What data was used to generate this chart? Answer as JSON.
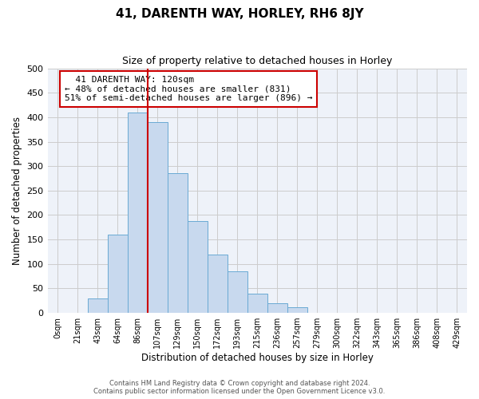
{
  "title": "41, DARENTH WAY, HORLEY, RH6 8JY",
  "subtitle": "Size of property relative to detached houses in Horley",
  "xlabel": "Distribution of detached houses by size in Horley",
  "ylabel": "Number of detached properties",
  "bar_labels": [
    "0sqm",
    "21sqm",
    "43sqm",
    "64sqm",
    "86sqm",
    "107sqm",
    "129sqm",
    "150sqm",
    "172sqm",
    "193sqm",
    "215sqm",
    "236sqm",
    "257sqm",
    "279sqm",
    "300sqm",
    "322sqm",
    "343sqm",
    "365sqm",
    "386sqm",
    "408sqm",
    "429sqm"
  ],
  "bar_values": [
    0,
    0,
    30,
    160,
    410,
    390,
    285,
    188,
    120,
    85,
    40,
    20,
    11,
    0,
    0,
    0,
    0,
    0,
    0,
    0,
    0
  ],
  "bar_color": "#c8d9ee",
  "bar_edge_color": "#6aaad4",
  "grid_color": "#cccccc",
  "bg_color": "#eef2f9",
  "vline_x": 5.0,
  "vline_color": "#cc0000",
  "annotation_text": "  41 DARENTH WAY: 120sqm\n← 48% of detached houses are smaller (831)\n51% of semi-detached houses are larger (896) →",
  "annotation_box_color": "#cc0000",
  "ylim": [
    0,
    500
  ],
  "yticks": [
    0,
    50,
    100,
    150,
    200,
    250,
    300,
    350,
    400,
    450,
    500
  ],
  "footer_line1": "Contains HM Land Registry data © Crown copyright and database right 2024.",
  "footer_line2": "Contains public sector information licensed under the Open Government Licence v3.0."
}
